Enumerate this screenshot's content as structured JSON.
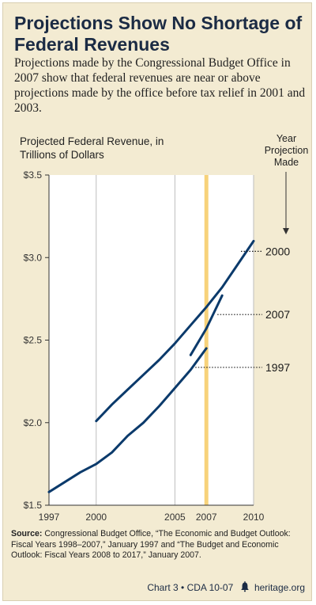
{
  "header": {
    "title": "Projections Show No Shortage of Federal Revenues",
    "intro": "Projections made by the Congressional Budget Office in 2007 show that federal revenues are near or above projections made by the office before tax relief in 2001 and 2003."
  },
  "chart_data": {
    "type": "line",
    "ylabel": "Projected Federal Revenue, in Trillions of Dollars",
    "legend_title": "Year Projection Made",
    "ylim": [
      1.5,
      3.5
    ],
    "xlim": [
      1997,
      2010
    ],
    "y_ticks": [
      "$1.5",
      "$2.0",
      "$2.5",
      "$3.0",
      "$3.5"
    ],
    "y_tick_values": [
      1.5,
      2.0,
      2.5,
      3.0,
      3.5
    ],
    "x_ticks": [
      "1997",
      "2000",
      "2005",
      "2007",
      "2010"
    ],
    "x_tick_values": [
      1997,
      2000,
      2005,
      2007,
      2010
    ],
    "highlight_year": 2007,
    "highlight_color": "#f7d27a",
    "line_color": "#0b3a6b",
    "grid": "vertical",
    "series": [
      {
        "name": "1997",
        "x": [
          1997,
          1998,
          1999,
          2000,
          2001,
          2002,
          2003,
          2004,
          2005,
          2006,
          2007
        ],
        "y": [
          1.58,
          1.64,
          1.7,
          1.75,
          1.82,
          1.92,
          2.0,
          2.1,
          2.21,
          2.32,
          2.45
        ]
      },
      {
        "name": "2000",
        "x": [
          2000,
          2001,
          2002,
          2003,
          2004,
          2005,
          2006,
          2007,
          2008,
          2009,
          2010
        ],
        "y": [
          2.01,
          2.11,
          2.2,
          2.29,
          2.38,
          2.48,
          2.59,
          2.7,
          2.82,
          2.96,
          3.1
        ]
      },
      {
        "name": "2007",
        "x": [
          2006,
          2007,
          2008
        ],
        "y": [
          2.41,
          2.57,
          2.77
        ]
      }
    ]
  },
  "source": {
    "label": "Source:",
    "text": "Congressional Budget Office, “The Economic and Budget Outlook: Fiscal Years 1998–2007,” January 1997 and “The Budget and Economic Outlook: Fiscal Years 2008 to 2017,” January 2007."
  },
  "footer": {
    "chart_id": "Chart 3 • CDA 10-07",
    "site": "heritage.org"
  }
}
